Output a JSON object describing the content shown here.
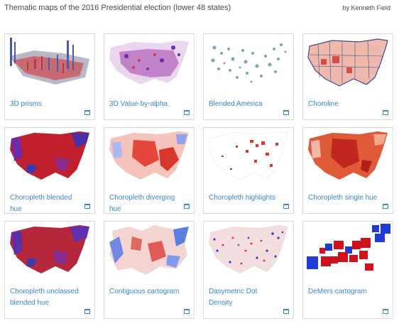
{
  "header": {
    "title": "Thematic maps of the 2016 Presidential election (lower 48 states)",
    "author": "by Kenneth Field"
  },
  "cards": [
    {
      "label": "3D prisms",
      "thumbnail": "3d-prisms-map",
      "icon": "calendar-icon"
    },
    {
      "label": "3D Value-by-alpha",
      "thumbnail": "value-by-alpha-map",
      "icon": "calendar-icon"
    },
    {
      "label": "Blended America",
      "thumbnail": "blended-america-map",
      "icon": "calendar-icon"
    },
    {
      "label": "Choroline",
      "thumbnail": "choroline-map",
      "icon": "calendar-icon"
    },
    {
      "label": "Choropleth blended hue",
      "thumbnail": "choropleth-blended-hue-map",
      "icon": "calendar-icon"
    },
    {
      "label": "Choropleth diverging hue",
      "thumbnail": "choropleth-diverging-hue-map",
      "icon": "calendar-icon"
    },
    {
      "label": "Choropleth highlights",
      "thumbnail": "choropleth-highlights-map",
      "icon": "calendar-icon"
    },
    {
      "label": "Choropleth single hue",
      "thumbnail": "choropleth-single-hue-map",
      "icon": "calendar-icon"
    },
    {
      "label": "Choropleth unclassed blended hue",
      "thumbnail": "choropleth-unclassed-map",
      "icon": "calendar-icon"
    },
    {
      "label": "Contiguous cartogram",
      "thumbnail": "contiguous-cartogram-map",
      "icon": "calendar-icon"
    },
    {
      "label": "Dasymetric Dot Density",
      "thumbnail": "dasymetric-dot-density-map",
      "icon": "calendar-icon"
    },
    {
      "label": "DeMers cartogram",
      "thumbnail": "demers-cartogram-map",
      "icon": "calendar-icon"
    }
  ],
  "colors": {
    "link": "#3a86c8",
    "republican": "#d7191c",
    "democrat": "#2c4bd6",
    "border": "#d9d9d9"
  }
}
